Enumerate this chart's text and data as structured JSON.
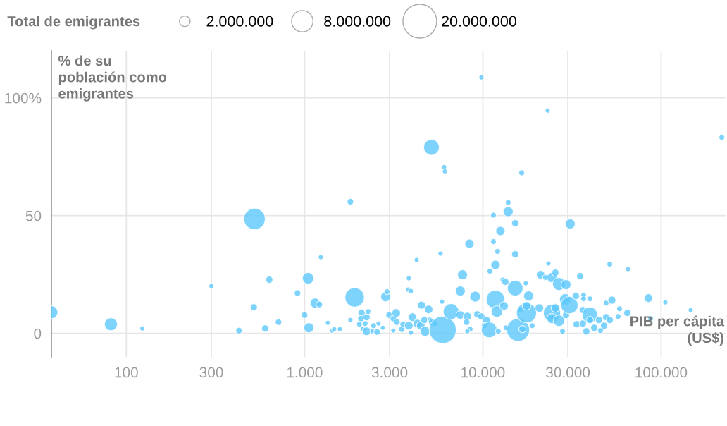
{
  "chart_data": {
    "type": "bubble",
    "xlabel": "PIB per cápita\n(US$)",
    "ylabel": "% de su\npoblación como\nemigrantes",
    "legend_title": "Total de emigrantes",
    "size_legend": [
      {
        "value": 2000000,
        "label": "2.000.000"
      },
      {
        "value": 8000000,
        "label": "8.000.000"
      },
      {
        "value": 20000000,
        "label": "20.000.000"
      }
    ],
    "log": "x",
    "grid": true,
    "xlim": [
      38,
      230000
    ],
    "ylim": [
      -10,
      120
    ],
    "xticks": [
      100,
      300,
      {
        "value": 1000,
        "label": "1.000"
      },
      {
        "value": 3000,
        "label": "3.000"
      },
      {
        "value": 10000,
        "label": "10.000"
      },
      {
        "value": 30000,
        "label": "30.000"
      },
      {
        "value": 100000,
        "label": "100.000"
      }
    ],
    "yticks": [
      0,
      50,
      {
        "value": 100,
        "label": "100%"
      }
    ],
    "series": [
      {
        "color": "#5cc8fb",
        "x": [
          38,
          82,
          123,
          300,
          524,
          429,
          519,
          601,
          634,
          714,
          913,
          1000,
          1047,
          1057,
          1146,
          1211,
          1233,
          1351,
          1427,
          1466,
          1577,
          1807,
          1910,
          1807,
          2089,
          2070,
          2228,
          2270,
          2032,
          2188,
          2128,
          2228,
          2439,
          2600,
          2399,
          2553,
          2748,
          2851,
          2904,
          2979,
          3148,
          3266,
          3296,
          3148,
          3513,
          3575,
          3845,
          3811,
          3953,
          3845,
          3953,
          4027,
          4295,
          4256,
          4489,
          4529,
          4699,
          4742,
          4966,
          5058,
          5200,
          5383,
          5152,
          5794,
          5900,
          5957,
          6067,
          6122,
          6637,
          7476,
          7476,
          7691,
          8190,
          8110,
          8492,
          8190,
          8414,
          9057,
          9311,
          9822,
          9822,
          10470,
          10190,
          10860,
          10960,
          11780,
          11470,
          11470,
          11780,
          11990,
          12100,
          12210,
          12560,
          12910,
          13390,
          13150,
          13510,
          13870,
          13870,
          15200,
          15200,
          15200,
          15780,
          16220,
          16680,
          16520,
          17580,
          17580,
          17420,
          18070,
          18920,
          20750,
          21090,
          22490,
          23120,
          23330,
          24420,
          25530,
          26730,
          29290,
          29010,
          24420,
          25530,
          24420,
          26730,
          27990,
          29290,
          30900,
          30620,
          33270,
          33580,
          35160,
          36410,
          36410,
          36740,
          36740,
          38100,
          39890,
          39890,
          39890,
          42170,
          44900,
          45730,
          47860,
          49200,
          49200,
          51520,
          51520,
          52950,
          57410,
          58460,
          64700,
          65300,
          84960,
          87300,
          105700,
          146600,
          219000
        ],
        "values": [
          9.0,
          3.9,
          2.1,
          20.1,
          48.6,
          1.2,
          11.1,
          2.1,
          22.8,
          4.8,
          17.1,
          7.8,
          23.4,
          2.4,
          12.9,
          12.3,
          32.4,
          4.5,
          1.2,
          1.8,
          1.8,
          55.9,
          15.3,
          5.7,
          8.7,
          6.3,
          6.9,
          9.3,
          3.9,
          4.2,
          1.8,
          0.9,
          3.3,
          4.2,
          0.9,
          0.6,
          2.4,
          15.6,
          17.7,
          7.8,
          6.3,
          8.7,
          4.8,
          1.2,
          1.8,
          3.9,
          23.4,
          18.6,
          18.0,
          3.3,
          0.3,
          6.9,
          4.2,
          31.2,
          3.3,
          12.0,
          5.7,
          0.9,
          10.2,
          5.7,
          4.8,
          4.2,
          79.0,
          33.9,
          13.5,
          1.5,
          70.6,
          68.8,
          9.3,
          7.8,
          18.0,
          24.9,
          7.2,
          4.8,
          1.8,
          0.9,
          38.1,
          15.6,
          8.1,
          7.2,
          108.7,
          5.4,
          3.3,
          1.5,
          26.4,
          29.1,
          39.0,
          50.2,
          14.4,
          9.3,
          34.8,
          0.9,
          43.5,
          22.8,
          21.9,
          11.7,
          2.4,
          51.7,
          55.6,
          19.2,
          33.6,
          46.8,
          1.5,
          9.9,
          1.8,
          68.2,
          8.7,
          11.7,
          21.3,
          15.9,
          3.3,
          10.8,
          24.9,
          23.7,
          94.6,
          29.7,
          23.7,
          25.8,
          21.0,
          20.7,
          14.4,
          8.7,
          10.8,
          6.3,
          5.4,
          0.9,
          7.8,
          46.5,
          12.0,
          15.9,
          3.9,
          24.3,
          9.9,
          4.2,
          16.2,
          14.7,
          0.9,
          7.8,
          14.7,
          5.7,
          2.4,
          5.7,
          1.2,
          3.3,
          6.9,
          12.9,
          5.7,
          29.4,
          14.1,
          7.2,
          10.5,
          8.7,
          27.3,
          15.0,
          6.3,
          13.2,
          9.9,
          83.2
        ],
        "sizes": [
          2900000,
          2900000,
          440000,
          440000,
          8000000,
          720000,
          890000,
          890000,
          890000,
          720000,
          720000,
          720000,
          2280000,
          1740000,
          1740000,
          720000,
          440000,
          440000,
          440000,
          440000,
          440000,
          720000,
          6500000,
          440000,
          890000,
          720000,
          890000,
          570000,
          570000,
          570000,
          570000,
          1280000,
          570000,
          440000,
          440000,
          720000,
          440000,
          1740000,
          570000,
          720000,
          720000,
          1280000,
          720000,
          440000,
          720000,
          720000,
          440000,
          440000,
          440000,
          1280000,
          440000,
          1280000,
          1280000,
          440000,
          1280000,
          1080000,
          890000,
          1740000,
          1280000,
          570000,
          890000,
          570000,
          4300000,
          440000,
          440000,
          12800000,
          440000,
          440000,
          4300000,
          1280000,
          1740000,
          1740000,
          1280000,
          720000,
          570000,
          440000,
          1500000,
          2000000,
          890000,
          890000,
          440000,
          1280000,
          570000,
          4300000,
          570000,
          1500000,
          570000,
          570000,
          6000000,
          2280000,
          570000,
          570000,
          1500000,
          440000,
          890000,
          1280000,
          570000,
          1740000,
          570000,
          4300000,
          890000,
          890000,
          9100000,
          570000,
          890000,
          570000,
          7000000,
          1280000,
          440000,
          1740000,
          570000,
          1280000,
          1280000,
          570000,
          440000,
          440000,
          1740000,
          890000,
          2880000,
          1740000,
          2280000,
          5100000,
          1280000,
          1740000,
          2280000,
          570000,
          890000,
          1740000,
          5100000,
          890000,
          890000,
          890000,
          890000,
          890000,
          570000,
          570000,
          890000,
          4300000,
          570000,
          890000,
          890000,
          890000,
          570000,
          890000,
          890000,
          570000,
          890000,
          570000,
          1080000,
          570000,
          570000,
          890000,
          440000,
          1280000,
          570000,
          440000,
          440000,
          570000
        ]
      }
    ]
  }
}
